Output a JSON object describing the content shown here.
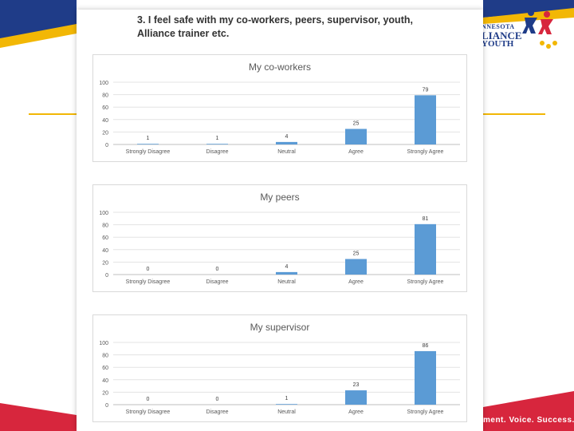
{
  "question": "3. I feel safe with my co-workers, peers, supervisor, youth, Alliance trainer etc.",
  "logo": {
    "line1": "NNESOTA",
    "line2": "LIANCE",
    "line3": "YOUTH"
  },
  "tagline": "ment. Voice. Success.",
  "colors": {
    "bar": "#5b9bd5",
    "navy": "#1f3c88",
    "gold": "#f2b705",
    "red": "#d7263d"
  },
  "chart_data": [
    {
      "type": "bar",
      "title": "My co-workers",
      "categories": [
        "Strongly Disagree",
        "Disagree",
        "Neutral",
        "Agree",
        "Strongly Agree"
      ],
      "values": [
        1,
        1,
        4,
        25,
        79
      ],
      "ylim": [
        0,
        100
      ],
      "yticks": [
        0,
        20,
        40,
        60,
        80,
        100
      ],
      "grid": true
    },
    {
      "type": "bar",
      "title": "My peers",
      "categories": [
        "Strongly Disagree",
        "Disagree",
        "Neutral",
        "Agree",
        "Strongly Agree"
      ],
      "values": [
        0,
        0,
        4,
        25,
        81
      ],
      "ylim": [
        0,
        100
      ],
      "yticks": [
        0,
        20,
        40,
        60,
        80,
        100
      ],
      "grid": true
    },
    {
      "type": "bar",
      "title": "My supervisor",
      "categories": [
        "Strongly Disagree",
        "Disagree",
        "Neutral",
        "Agree",
        "Strongly Agree"
      ],
      "values": [
        0,
        0,
        1,
        23,
        86
      ],
      "ylim": [
        0,
        100
      ],
      "yticks": [
        0,
        20,
        40,
        60,
        80,
        100
      ],
      "grid": true
    }
  ]
}
